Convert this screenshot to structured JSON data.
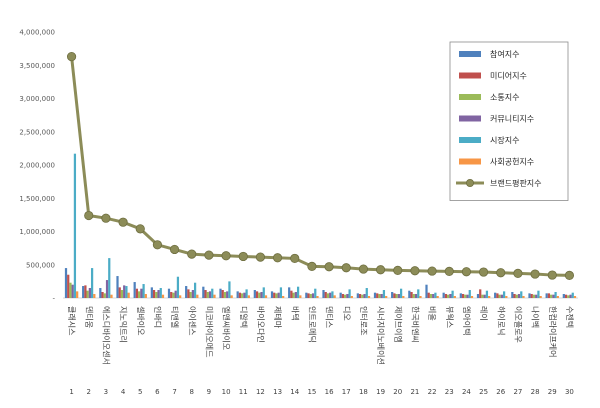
{
  "chart_data": {
    "type": "bar",
    "title": "",
    "xlabel": "",
    "ylabel": "",
    "ylim": [
      0,
      4000000
    ],
    "yticks": [
      "4,000,000",
      "3,500,000",
      "3,000,000",
      "2,500,000",
      "2,000,000",
      "1,500,000",
      "1,000,000",
      "500,000",
      "-"
    ],
    "grid": false,
    "legend_position": "top-right",
    "categories": [
      "클래시스",
      "덴티움",
      "에스디바이오센서",
      "지노믹트리",
      "셀바이오",
      "인바디",
      "티앤엘",
      "아이센스",
      "미코바이오메드",
      "엘앤씨바이오",
      "디알텍",
      "바이오다인",
      "제테마",
      "바텍",
      "인트로메딕",
      "덴티스",
      "디오",
      "인터로조",
      "시너지이노베이션",
      "제이브이엠",
      "한국비엔씨",
      "비올",
      "뷰웍스",
      "엠아이텍",
      "레이",
      "하이로닉",
      "이오플로우",
      "나이벡",
      "한컴라이프케어",
      "수젠텍"
    ],
    "ranks": [
      "1",
      "2",
      "3",
      "4",
      "5",
      "6",
      "7",
      "8",
      "9",
      "10",
      "11",
      "12",
      "13",
      "14",
      "15",
      "16",
      "17",
      "18",
      "19",
      "20",
      "21",
      "22",
      "23",
      "24",
      "25",
      "26",
      "27",
      "28",
      "29",
      "30"
    ],
    "series": [
      {
        "name": "참여지수",
        "color": "#4f81bd",
        "kind": "bar",
        "values": [
          450000,
          180000,
          150000,
          330000,
          240000,
          160000,
          140000,
          180000,
          170000,
          140000,
          100000,
          120000,
          100000,
          160000,
          80000,
          120000,
          80000,
          70000,
          80000,
          90000,
          110000,
          200000,
          80000,
          70000,
          60000,
          80000,
          90000,
          70000,
          70000,
          60000
        ]
      },
      {
        "name": "미디어지수",
        "color": "#c0504d",
        "kind": "bar",
        "values": [
          350000,
          190000,
          90000,
          160000,
          140000,
          120000,
          90000,
          130000,
          120000,
          120000,
          80000,
          100000,
          80000,
          110000,
          70000,
          90000,
          60000,
          60000,
          70000,
          70000,
          90000,
          80000,
          60000,
          60000,
          130000,
          70000,
          60000,
          60000,
          70000,
          50000
        ]
      },
      {
        "name": "소통지수",
        "color": "#9bbb59",
        "kind": "bar",
        "values": [
          230000,
          110000,
          70000,
          120000,
          100000,
          90000,
          80000,
          90000,
          90000,
          90000,
          70000,
          80000,
          70000,
          80000,
          60000,
          70000,
          50000,
          50000,
          60000,
          60000,
          60000,
          60000,
          50000,
          50000,
          50000,
          50000,
          50000,
          50000,
          50000,
          40000
        ]
      },
      {
        "name": "커뮤니티지수",
        "color": "#8064a2",
        "kind": "bar",
        "values": [
          200000,
          150000,
          270000,
          190000,
          140000,
          120000,
          110000,
          120000,
          100000,
          100000,
          80000,
          90000,
          80000,
          90000,
          70000,
          80000,
          60000,
          60000,
          60000,
          60000,
          60000,
          60000,
          60000,
          50000,
          50000,
          50000,
          60000,
          50000,
          50000,
          50000
        ]
      },
      {
        "name": "시장지수",
        "color": "#4bacc6",
        "kind": "bar",
        "values": [
          2170000,
          450000,
          600000,
          180000,
          210000,
          150000,
          320000,
          230000,
          140000,
          250000,
          130000,
          160000,
          160000,
          170000,
          140000,
          100000,
          130000,
          150000,
          120000,
          140000,
          130000,
          80000,
          110000,
          120000,
          110000,
          100000,
          100000,
          110000,
          90000,
          80000
        ]
      },
      {
        "name": "사회공헌지수",
        "color": "#f79646",
        "kind": "bar",
        "values": [
          100000,
          60000,
          50000,
          80000,
          60000,
          50000,
          40000,
          50000,
          50000,
          40000,
          40000,
          40000,
          30000,
          40000,
          30000,
          40000,
          30000,
          30000,
          30000,
          30000,
          30000,
          30000,
          30000,
          30000,
          30000,
          30000,
          30000,
          30000,
          30000,
          30000
        ]
      },
      {
        "name": "브랜드평판지수",
        "color": "#8c8c58",
        "kind": "line",
        "values": [
          3630000,
          1240000,
          1200000,
          1140000,
          1040000,
          800000,
          730000,
          660000,
          645000,
          635000,
          625000,
          615000,
          605000,
          595000,
          475000,
          470000,
          455000,
          435000,
          425000,
          415000,
          410000,
          405000,
          400000,
          395000,
          390000,
          380000,
          370000,
          360000,
          345000,
          340000
        ]
      }
    ]
  }
}
